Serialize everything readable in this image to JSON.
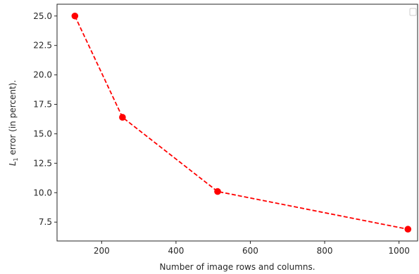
{
  "chart_data": {
    "type": "line",
    "xlabel": "Number of image rows and columns.",
    "ylabel_main": "L",
    "ylabel_subscript": "1",
    "ylabel_rest": " error (in percent).",
    "xlim": [
      80,
      1050
    ],
    "ylim": [
      5.9,
      26.0
    ],
    "xticks": [
      200,
      400,
      600,
      800,
      1000
    ],
    "yticks": [
      7.5,
      10.0,
      12.5,
      15.0,
      17.5,
      20.0,
      22.5,
      25.0
    ],
    "ytick_labels": [
      "7.5",
      "10.0",
      "12.5",
      "15.0",
      "17.5",
      "20.0",
      "22.5",
      "25.0"
    ],
    "grid": false,
    "legend": "top-right, empty",
    "series": [
      {
        "x": [
          128,
          256,
          512,
          1024
        ],
        "y": [
          25.0,
          16.4,
          10.1,
          6.9
        ],
        "color": "#ff0000",
        "linestyle": "dashed",
        "marker": "circle"
      }
    ]
  }
}
